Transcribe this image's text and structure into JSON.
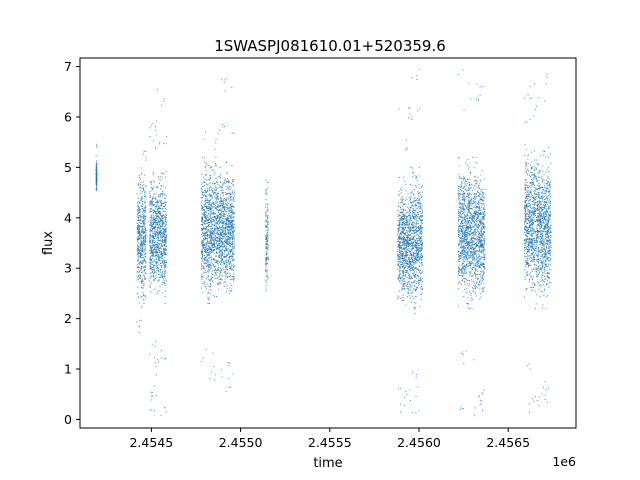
{
  "chart_data": {
    "type": "scatter",
    "title": "1SWASPJ081610.01+520359.6",
    "xlabel": "time",
    "ylabel": "flux",
    "x_offset_label": "1e6",
    "xlim": [
      2454100,
      2456880
    ],
    "ylim": [
      -0.17,
      7.17
    ],
    "x_ticks": [
      2454500,
      2455000,
      2455500,
      2456000,
      2456500
    ],
    "x_tick_labels": [
      "2.4545",
      "2.4550",
      "2.4555",
      "2.4560",
      "2.4565"
    ],
    "y_ticks": [
      0,
      1,
      2,
      3,
      4,
      5,
      6,
      7
    ],
    "y_tick_labels": [
      "0",
      "1",
      "2",
      "3",
      "4",
      "5",
      "6",
      "7"
    ],
    "grid": false,
    "point_color": "#1f77b4",
    "clusters": [
      {
        "x_range": [
          2454190,
          2454195
        ],
        "core": [
          4.5,
          5.1
        ],
        "outliers": [
          5.2,
          5.5
        ]
      },
      {
        "x_range": [
          2454420,
          2454470
        ],
        "core": [
          2.2,
          5.0
        ],
        "outliers": [
          1.8,
          5.2
        ]
      },
      {
        "x_range": [
          2454490,
          2454530
        ],
        "core": [
          2.3,
          4.9
        ],
        "outliers": [
          0.3,
          0.55,
          1.0,
          1.4,
          5.5,
          5.9
        ]
      },
      {
        "x_range": [
          2454531,
          2454585
        ],
        "core": [
          2.3,
          5.0
        ],
        "outliers": [
          0.2,
          1.2,
          5.6,
          6.4
        ]
      },
      {
        "x_range": [
          2454780,
          2454890
        ],
        "core": [
          2.3,
          5.2
        ],
        "outliers": [
          0.9,
          1.3,
          5.5,
          5.7
        ]
      },
      {
        "x_range": [
          2454891,
          2454965
        ],
        "core": [
          2.4,
          5.1
        ],
        "outliers": [
          0.7,
          1.0,
          5.8,
          6.6
        ]
      },
      {
        "x_range": [
          2455140,
          2455155
        ],
        "core": [
          2.3,
          4.8
        ],
        "outliers": []
      },
      {
        "x_range": [
          2455880,
          2455950
        ],
        "core": [
          2.2,
          4.8
        ],
        "outliers": [
          0.2,
          0.5,
          5.5,
          6.1
        ]
      },
      {
        "x_range": [
          2455951,
          2456020
        ],
        "core": [
          2.1,
          5.0
        ],
        "outliers": [
          0.3,
          0.8,
          6.1,
          6.8
        ]
      },
      {
        "x_range": [
          2456220,
          2456330
        ],
        "core": [
          2.2,
          5.2
        ],
        "outliers": [
          0.2,
          1.2,
          6.2,
          6.8
        ]
      },
      {
        "x_range": [
          2456331,
          2456370
        ],
        "core": [
          2.3,
          5.0
        ],
        "outliers": [
          0.3,
          0.6,
          6.5
        ]
      },
      {
        "x_range": [
          2456590,
          2456650
        ],
        "core": [
          2.4,
          5.5
        ],
        "outliers": [
          0.3,
          1.0,
          5.9,
          6.5
        ]
      },
      {
        "x_range": [
          2456651,
          2456740
        ],
        "core": [
          2.2,
          5.4
        ],
        "outliers": [
          0.3,
          0.6,
          6.3,
          6.8
        ]
      }
    ]
  }
}
